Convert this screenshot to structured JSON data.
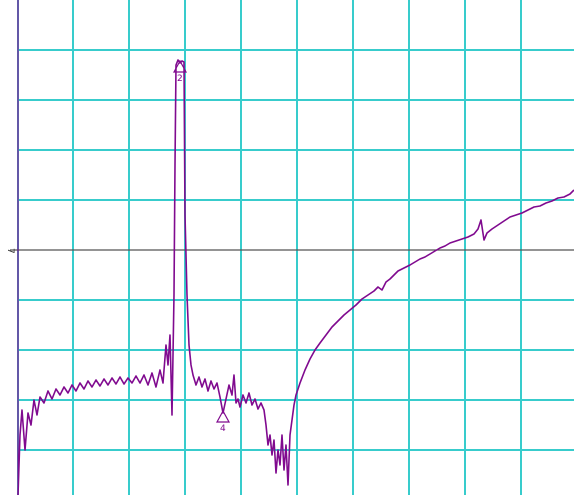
{
  "chart_data": {
    "type": "line",
    "title": "",
    "xlabel": "",
    "ylabel": "",
    "xlim": [
      0,
      574
    ],
    "ylim": [
      0,
      495
    ],
    "grid": true,
    "grid_color": "#38cccc",
    "trace_color": "#800a8f",
    "reference_level_label": "7",
    "markers": [
      {
        "label": "2",
        "x": 180,
        "y": 432
      },
      {
        "label": "4",
        "x": 223,
        "y": 82
      }
    ],
    "series": [
      {
        "points": [
          [
            18,
            0
          ],
          [
            20,
            60
          ],
          [
            22,
            85
          ],
          [
            25,
            45
          ],
          [
            28,
            82
          ],
          [
            31,
            70
          ],
          [
            34,
            95
          ],
          [
            37,
            80
          ],
          [
            40,
            98
          ],
          [
            44,
            92
          ],
          [
            48,
            104
          ],
          [
            52,
            96
          ],
          [
            56,
            106
          ],
          [
            60,
            100
          ],
          [
            64,
            108
          ],
          [
            68,
            102
          ],
          [
            72,
            110
          ],
          [
            76,
            104
          ],
          [
            80,
            112
          ],
          [
            84,
            106
          ],
          [
            88,
            114
          ],
          [
            92,
            108
          ],
          [
            96,
            115
          ],
          [
            100,
            109
          ],
          [
            104,
            116
          ],
          [
            108,
            110
          ],
          [
            112,
            117
          ],
          [
            116,
            111
          ],
          [
            120,
            118
          ],
          [
            124,
            111
          ],
          [
            128,
            117
          ],
          [
            132,
            112
          ],
          [
            136,
            119
          ],
          [
            140,
            112
          ],
          [
            144,
            120
          ],
          [
            148,
            110
          ],
          [
            152,
            122
          ],
          [
            156,
            108
          ],
          [
            160,
            125
          ],
          [
            163,
            112
          ],
          [
            166,
            150
          ],
          [
            168,
            130
          ],
          [
            170,
            160
          ],
          [
            172,
            80
          ],
          [
            174,
            200
          ],
          [
            175,
            330
          ],
          [
            176,
            430
          ],
          [
            178,
            435
          ],
          [
            180,
            432
          ],
          [
            182,
            434
          ],
          [
            184,
            433
          ],
          [
            185,
            280
          ],
          [
            187,
            200
          ],
          [
            189,
            150
          ],
          [
            191,
            130
          ],
          [
            193,
            120
          ],
          [
            196,
            110
          ],
          [
            199,
            118
          ],
          [
            202,
            108
          ],
          [
            205,
            116
          ],
          [
            208,
            104
          ],
          [
            211,
            114
          ],
          [
            214,
            106
          ],
          [
            217,
            112
          ],
          [
            220,
            98
          ],
          [
            223,
            82
          ],
          [
            226,
            96
          ],
          [
            229,
            110
          ],
          [
            232,
            100
          ],
          [
            234,
            120
          ],
          [
            236,
            92
          ],
          [
            238,
            96
          ],
          [
            240,
            88
          ],
          [
            243,
            100
          ],
          [
            246,
            92
          ],
          [
            249,
            102
          ],
          [
            252,
            90
          ],
          [
            255,
            96
          ],
          [
            258,
            86
          ],
          [
            261,
            92
          ],
          [
            264,
            85
          ],
          [
            266,
            70
          ],
          [
            268,
            50
          ],
          [
            270,
            60
          ],
          [
            272,
            40
          ],
          [
            274,
            55
          ],
          [
            276,
            22
          ],
          [
            278,
            45
          ],
          [
            280,
            30
          ],
          [
            282,
            60
          ],
          [
            284,
            25
          ],
          [
            286,
            50
          ],
          [
            288,
            10
          ],
          [
            290,
            60
          ],
          [
            292,
            75
          ],
          [
            294,
            90
          ],
          [
            296,
            100
          ],
          [
            300,
            112
          ],
          [
            305,
            125
          ],
          [
            310,
            136
          ],
          [
            315,
            145
          ],
          [
            320,
            152
          ],
          [
            326,
            160
          ],
          [
            332,
            168
          ],
          [
            338,
            174
          ],
          [
            344,
            180
          ],
          [
            350,
            185
          ],
          [
            356,
            190
          ],
          [
            362,
            196
          ],
          [
            368,
            200
          ],
          [
            374,
            204
          ],
          [
            378,
            208
          ],
          [
            382,
            205
          ],
          [
            386,
            213
          ],
          [
            390,
            216
          ],
          [
            394,
            220
          ],
          [
            398,
            224
          ],
          [
            402,
            226
          ],
          [
            406,
            228
          ],
          [
            410,
            230
          ],
          [
            415,
            233
          ],
          [
            420,
            236
          ],
          [
            425,
            238
          ],
          [
            430,
            241
          ],
          [
            435,
            244
          ],
          [
            440,
            247
          ],
          [
            445,
            249
          ],
          [
            450,
            252
          ],
          [
            456,
            254
          ],
          [
            462,
            256
          ],
          [
            468,
            258
          ],
          [
            474,
            261
          ],
          [
            478,
            266
          ],
          [
            481,
            275
          ],
          [
            484,
            255
          ],
          [
            487,
            262
          ],
          [
            492,
            266
          ],
          [
            498,
            270
          ],
          [
            504,
            274
          ],
          [
            510,
            278
          ],
          [
            516,
            280
          ],
          [
            522,
            282
          ],
          [
            528,
            285
          ],
          [
            534,
            288
          ],
          [
            540,
            289
          ],
          [
            546,
            292
          ],
          [
            552,
            294
          ],
          [
            558,
            297
          ],
          [
            564,
            298
          ],
          [
            570,
            301
          ],
          [
            574,
            305
          ]
        ]
      }
    ]
  }
}
